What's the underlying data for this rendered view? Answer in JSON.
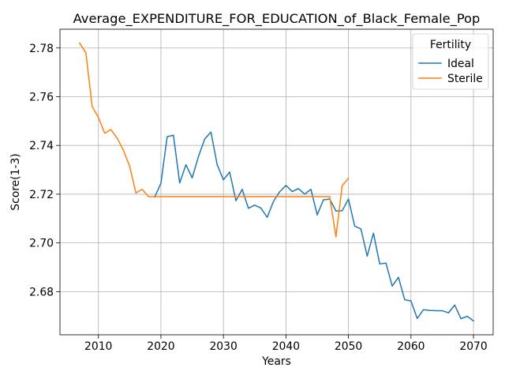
{
  "chart_data": {
    "type": "line",
    "title": "Average_EXPENDITURE_FOR_EDUCATION_of_Black_Female_Pop",
    "xlabel": "Years",
    "ylabel": "Score(1-3)",
    "xlim": [
      2003.85,
      2073.15
    ],
    "ylim": [
      2.6623,
      2.7877
    ],
    "xticks": [
      2010,
      2020,
      2030,
      2040,
      2050,
      2060,
      2070
    ],
    "xtick_labels": [
      "2010",
      "2020",
      "2030",
      "2040",
      "2050",
      "2060",
      "2070"
    ],
    "yticks": [
      2.68,
      2.7,
      2.72,
      2.74,
      2.76,
      2.78
    ],
    "ytick_labels": [
      "2.68",
      "2.70",
      "2.72",
      "2.74",
      "2.76",
      "2.78"
    ],
    "grid": true,
    "legend": {
      "title": "Fertility",
      "placement": "upper right"
    },
    "series": [
      {
        "name": "Ideal",
        "color": "#1f77b4",
        "x": [
          2019,
          2020,
          2021,
          2022,
          2023,
          2024,
          2025,
          2026,
          2027,
          2028,
          2029,
          2030,
          2031,
          2032,
          2033,
          2034,
          2035,
          2036,
          2037,
          2038,
          2039,
          2040,
          2041,
          2042,
          2043,
          2044,
          2045,
          2046,
          2047,
          2048,
          2049,
          2050,
          2051,
          2052,
          2053,
          2054,
          2055,
          2056,
          2057,
          2058,
          2059,
          2060,
          2061,
          2062,
          2063,
          2064,
          2065,
          2066,
          2067,
          2068,
          2069,
          2070
        ],
        "y": [
          2.7188,
          2.7245,
          2.7436,
          2.7442,
          2.7246,
          2.7321,
          2.7267,
          2.7354,
          2.7426,
          2.7455,
          2.7321,
          2.7259,
          2.7291,
          2.7173,
          2.722,
          2.7142,
          2.7155,
          2.7143,
          2.7105,
          2.717,
          2.721,
          2.7236,
          2.7211,
          2.7223,
          2.72,
          2.722,
          2.7115,
          2.7177,
          2.718,
          2.7131,
          2.7132,
          2.718,
          2.7069,
          2.7057,
          2.6946,
          2.704,
          2.6914,
          2.6917,
          2.6823,
          2.6859,
          2.6767,
          2.6762,
          2.669,
          2.6726,
          2.6723,
          2.6722,
          2.6722,
          2.6713,
          2.6745,
          2.6689,
          2.6699,
          2.668
        ]
      },
      {
        "name": "Sterile",
        "color": "#ff7f0e",
        "x": [
          2007,
          2008,
          2009,
          2010,
          2011,
          2012,
          2013,
          2014,
          2015,
          2016,
          2017,
          2018,
          2019,
          2020,
          2021,
          2022,
          2023,
          2024,
          2025,
          2026,
          2027,
          2028,
          2029,
          2030,
          2031,
          2032,
          2033,
          2034,
          2035,
          2036,
          2037,
          2038,
          2039,
          2040,
          2041,
          2042,
          2043,
          2044,
          2045,
          2046,
          2047,
          2048,
          2049,
          2050
        ],
        "y": [
          2.782,
          2.778,
          2.756,
          2.7515,
          2.745,
          2.7465,
          2.743,
          2.738,
          2.7315,
          2.7205,
          2.722,
          2.719,
          2.719,
          2.719,
          2.719,
          2.719,
          2.719,
          2.719,
          2.719,
          2.719,
          2.719,
          2.719,
          2.719,
          2.719,
          2.719,
          2.719,
          2.719,
          2.719,
          2.719,
          2.719,
          2.719,
          2.719,
          2.719,
          2.719,
          2.719,
          2.719,
          2.719,
          2.719,
          2.719,
          2.719,
          2.719,
          2.7025,
          2.7235,
          2.7265
        ]
      }
    ]
  }
}
